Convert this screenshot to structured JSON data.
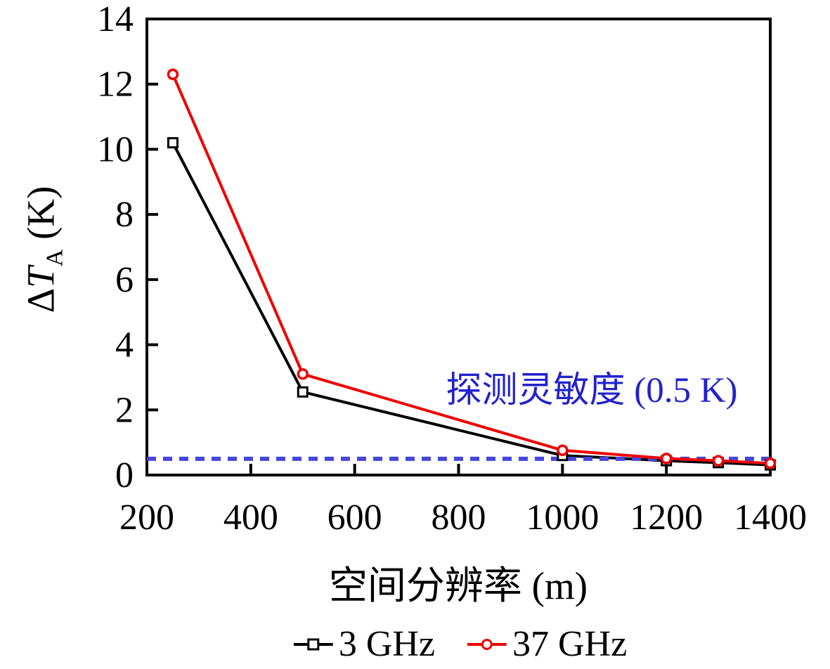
{
  "figure": {
    "background": "#ffffff"
  },
  "chart_data": {
    "type": "line",
    "title": "",
    "xlabel": "空间分辨率 (m)",
    "ylabel": "ΔT_A (K)",
    "ylabel_parts": {
      "delta": "Δ",
      "symbol": "T",
      "subscript": "A",
      "unit": " (K)"
    },
    "xlim": [
      200,
      1400
    ],
    "ylim": [
      0,
      14
    ],
    "xticks": [
      200,
      400,
      600,
      800,
      1000,
      1200,
      1400
    ],
    "yticks": [
      0,
      2,
      4,
      6,
      8,
      10,
      12,
      14
    ],
    "grid": false,
    "x": [
      250,
      500,
      1000,
      1200,
      1300,
      1400
    ],
    "series": [
      {
        "name": "3 GHz",
        "color": "#000000",
        "marker": "square",
        "values": [
          10.2,
          2.55,
          0.6,
          0.44,
          0.38,
          0.31
        ]
      },
      {
        "name": "37 GHz",
        "color": "#ee0000",
        "marker": "circle",
        "values": [
          12.3,
          3.1,
          0.76,
          0.51,
          0.44,
          0.36
        ]
      }
    ],
    "reference_line": {
      "y": 0.5,
      "style": "dashed",
      "color": "#4646dc",
      "label": "探测灵敏度 (0.5 K)",
      "label_color": "#2222cc"
    },
    "legend_position": "bottom-center"
  }
}
